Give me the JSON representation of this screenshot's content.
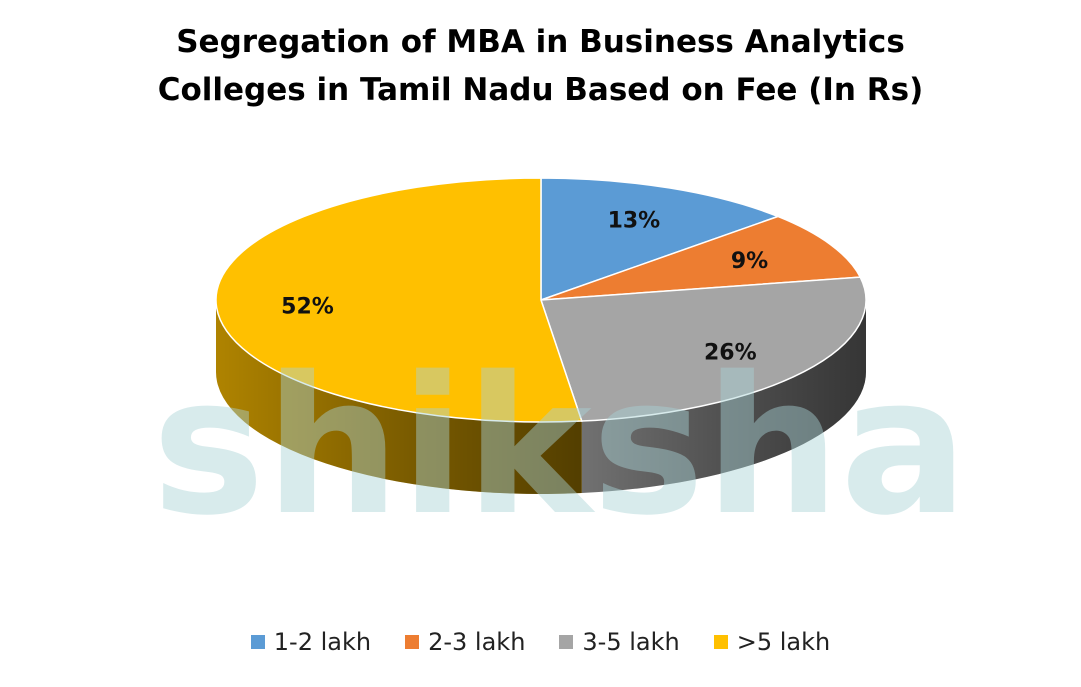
{
  "chart_data": {
    "type": "pie",
    "title_lines": [
      "Segregation of MBA in Business Analytics",
      "Colleges in Tamil Nadu Based on Fee (In Rs)"
    ],
    "slices": [
      {
        "label": "1-2 lakh",
        "value": 13,
        "display": "13%",
        "color": "#5B9BD5"
      },
      {
        "label": "2-3 lakh",
        "value": 9,
        "display": "9%",
        "color": "#ED7D31"
      },
      {
        "label": "3-5 lakh",
        "value": 26,
        "display": "26%",
        "color": "#A5A5A5"
      },
      {
        "label": ">5 lakh",
        "value": 52,
        "display": "52%",
        "color": "#FFC000"
      }
    ],
    "legend_position": "bottom",
    "style": "3d-pie"
  },
  "watermark": {
    "text": "shiksha"
  }
}
